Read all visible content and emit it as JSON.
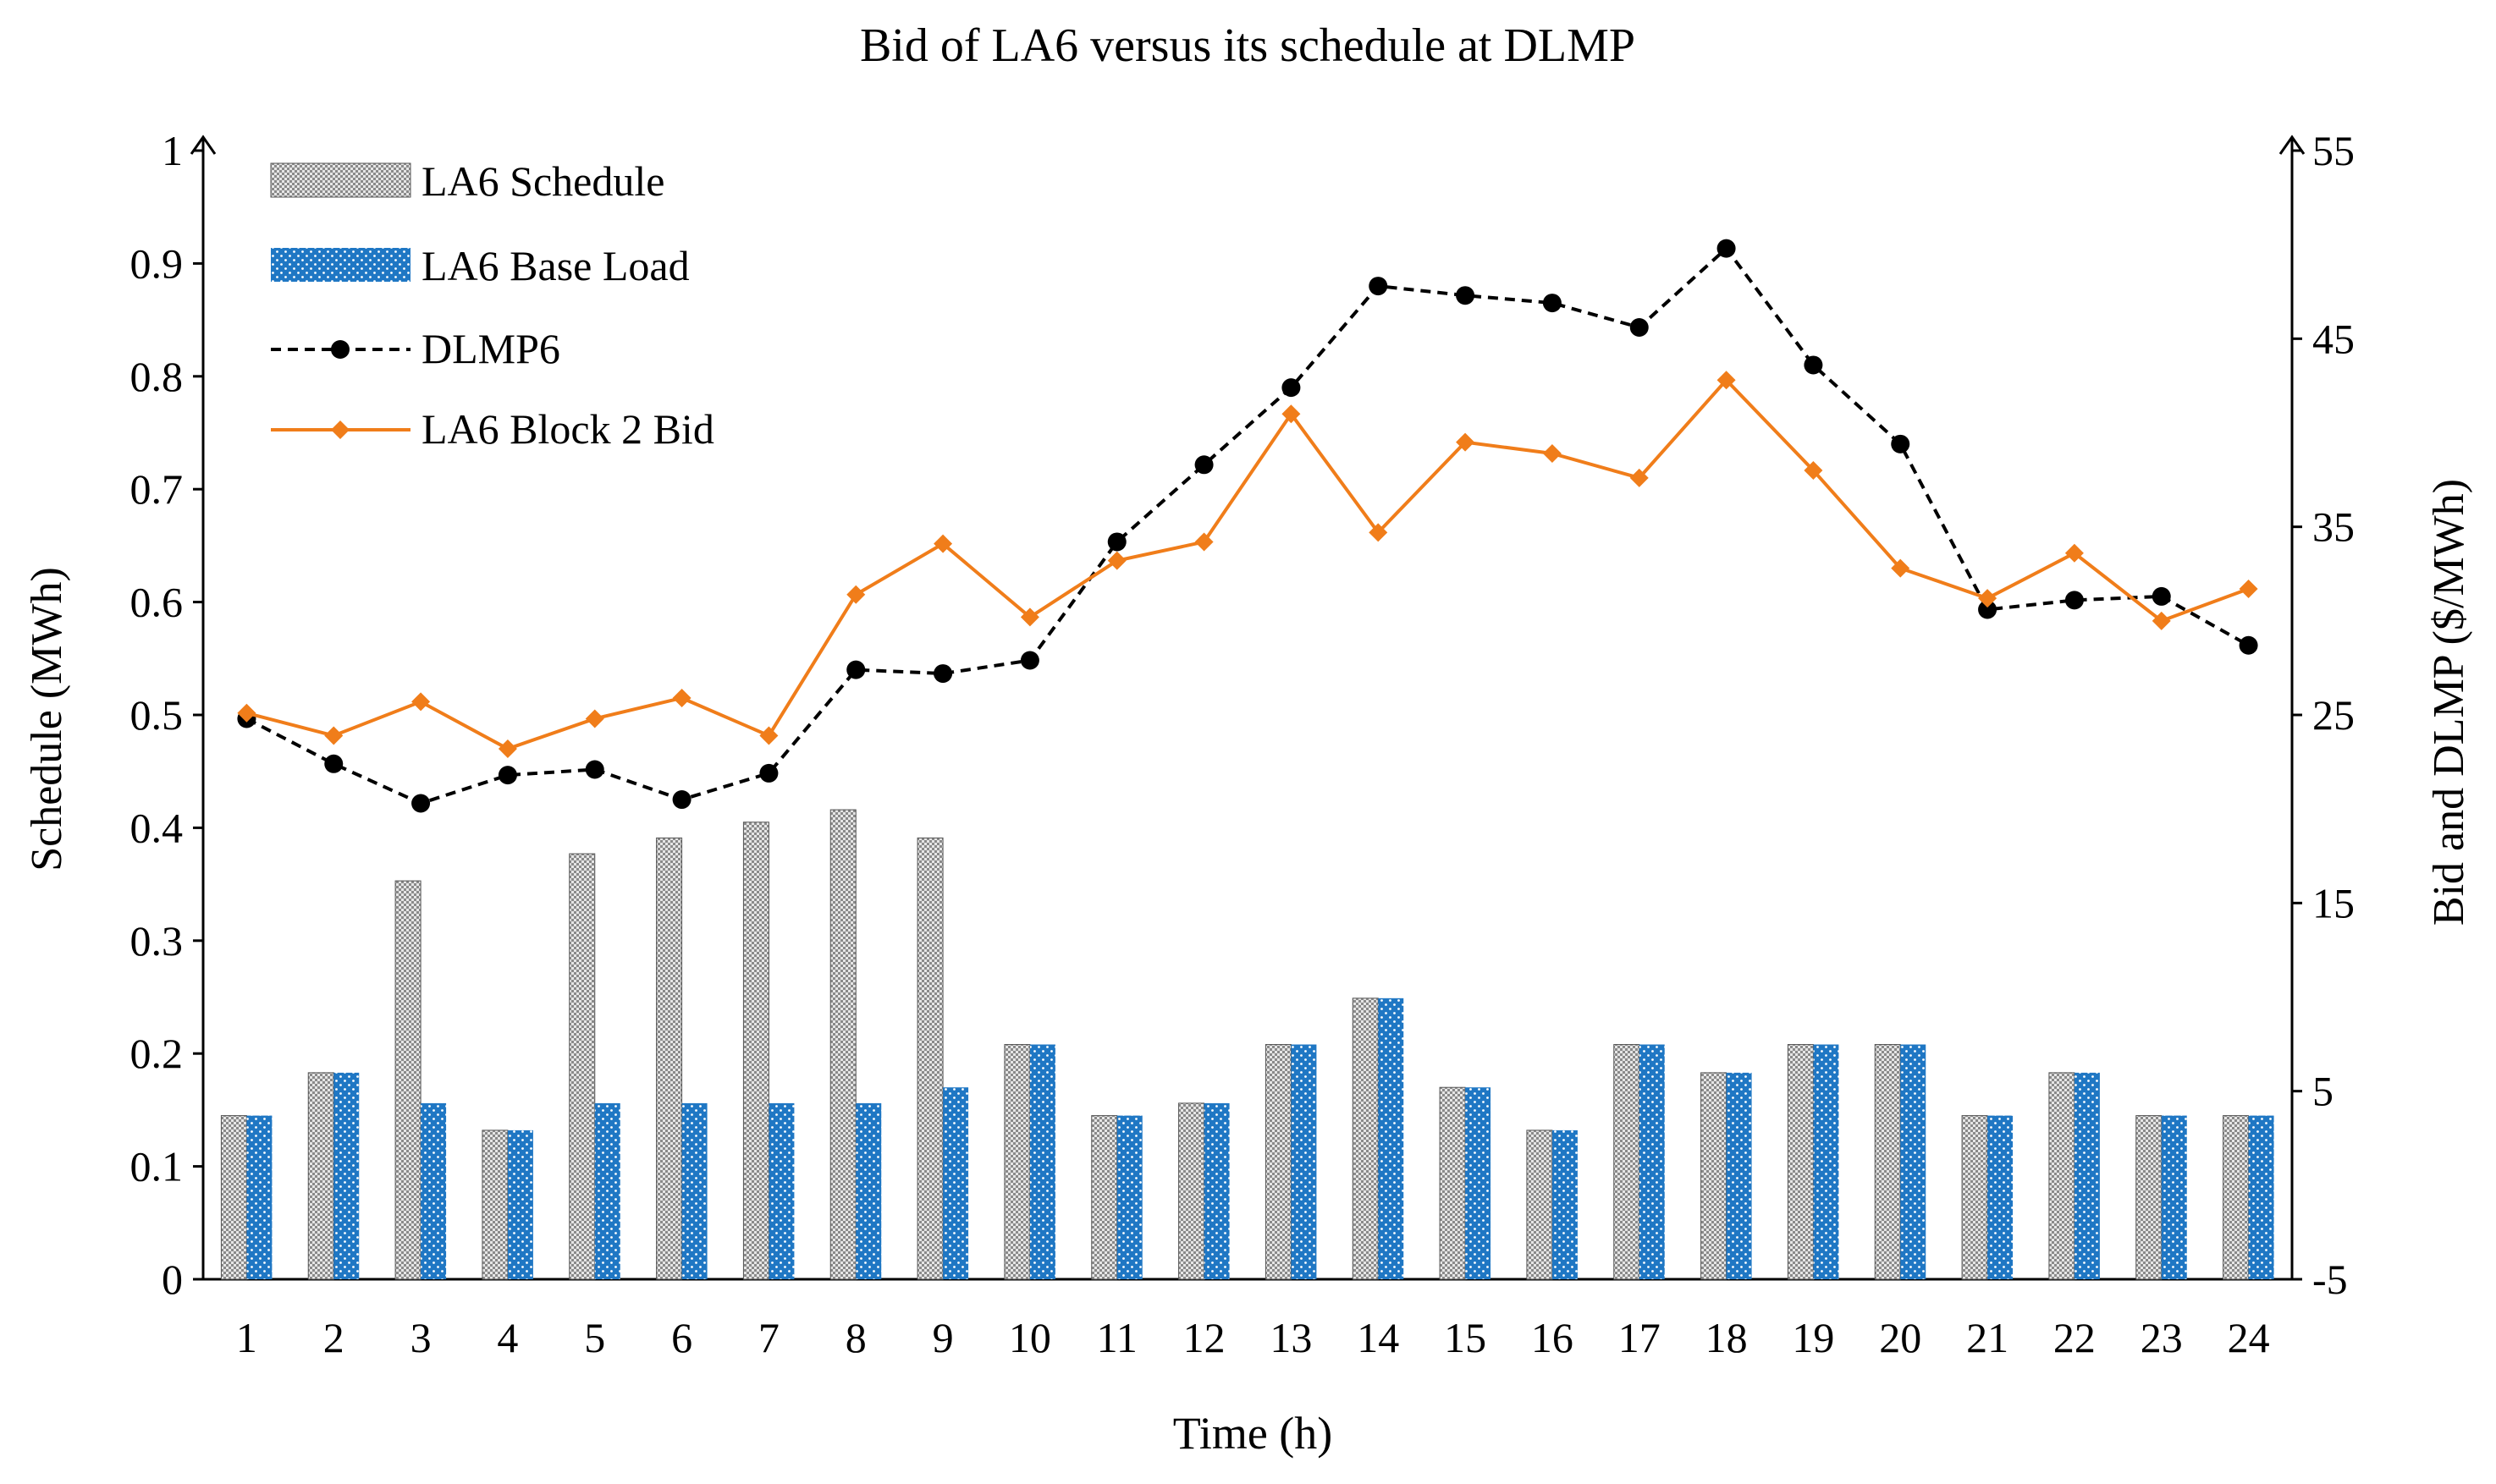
{
  "chart_data": {
    "type": "bar",
    "title": "Bid of LA6 versus its schedule at DLMP",
    "xlabel": "Time (h)",
    "ylabel_left": "Schedule (MWh)",
    "ylabel_right": "Bid and DLMP  ($/MWh)",
    "categories": [
      "1",
      "2",
      "3",
      "4",
      "5",
      "6",
      "7",
      "8",
      "9",
      "10",
      "11",
      "12",
      "13",
      "14",
      "15",
      "16",
      "17",
      "18",
      "19",
      "20",
      "21",
      "22",
      "23",
      "24"
    ],
    "ylim_left": [
      0,
      1
    ],
    "yticks_left": [
      "0",
      "0.1",
      "0.2",
      "0.3",
      "0.4",
      "0.5",
      "0.6",
      "0.7",
      "0.8",
      "0.9",
      "1"
    ],
    "ylim_right": [
      -5,
      55
    ],
    "yticks_right": [
      "-5",
      "5",
      "15",
      "25",
      "35",
      "45",
      "55"
    ],
    "series": [
      {
        "name": "LA6 Schedule",
        "type": "bar",
        "axis": "left",
        "color": "#808080",
        "values": [
          0.145,
          0.183,
          0.353,
          0.132,
          0.377,
          0.391,
          0.405,
          0.416,
          0.391,
          0.208,
          0.145,
          0.156,
          0.208,
          0.249,
          0.17,
          0.132,
          0.208,
          0.183,
          0.208,
          0.208,
          0.145,
          0.183,
          0.145,
          0.145
        ]
      },
      {
        "name": "LA6 Base Load",
        "type": "bar",
        "axis": "left",
        "color": "#1f77c4",
        "values": [
          0.145,
          0.183,
          0.156,
          0.132,
          0.156,
          0.156,
          0.156,
          0.156,
          0.17,
          0.208,
          0.145,
          0.156,
          0.208,
          0.249,
          0.17,
          0.132,
          0.208,
          0.183,
          0.208,
          0.208,
          0.145,
          0.183,
          0.145,
          0.145
        ]
      },
      {
        "name": "DLMP6",
        "type": "line",
        "axis": "right",
        "color": "#000000",
        "values": [
          24.8,
          22.4,
          20.3,
          21.8,
          22.1,
          20.5,
          21.9,
          27.4,
          27.2,
          27.9,
          34.2,
          38.3,
          42.4,
          47.8,
          47.3,
          46.9,
          45.6,
          49.8,
          43.6,
          39.4,
          30.6,
          31.1,
          31.3,
          28.7
        ]
      },
      {
        "name": "LA6 Block 2 Bid",
        "type": "line",
        "axis": "right",
        "color": "#f07d1a",
        "values": [
          25.1,
          23.9,
          25.7,
          23.2,
          24.8,
          25.9,
          23.9,
          31.4,
          34.1,
          30.2,
          33.2,
          34.2,
          41.0,
          34.7,
          39.5,
          38.9,
          37.6,
          42.8,
          38.0,
          32.8,
          31.2,
          33.6,
          30.0,
          31.7
        ]
      }
    ],
    "legend_position": "top-left"
  }
}
